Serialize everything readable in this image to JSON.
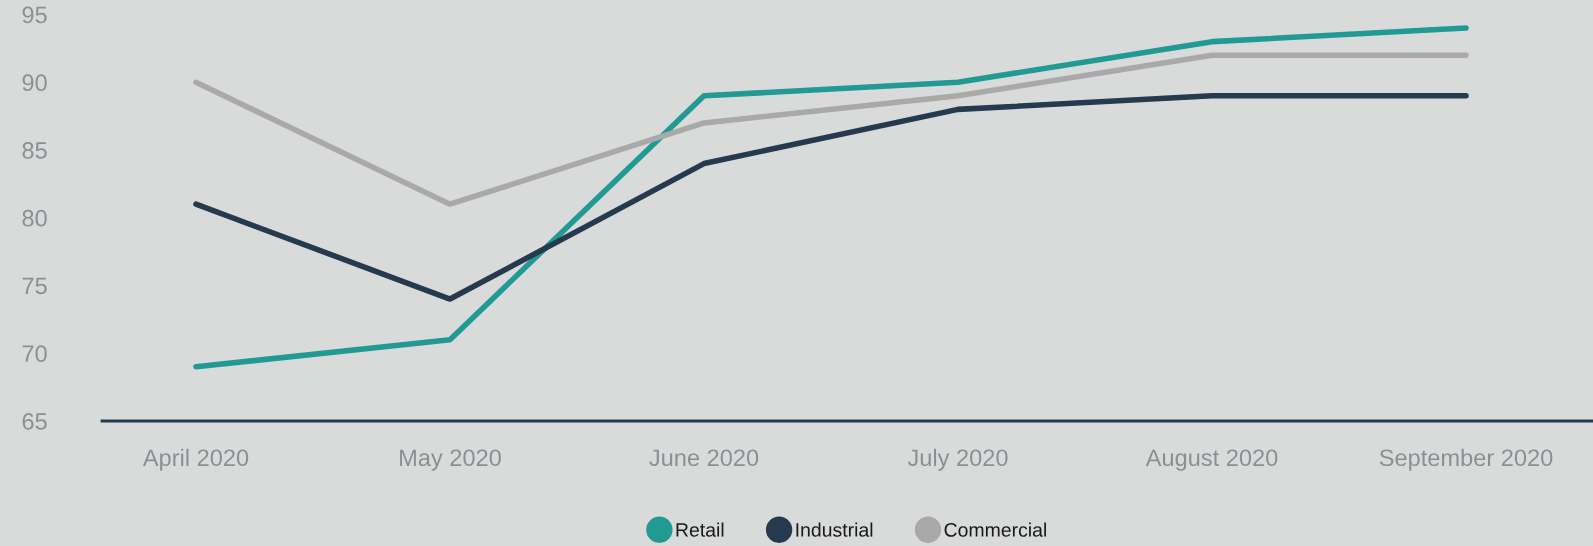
{
  "chart_data": {
    "type": "line",
    "categories": [
      "April 2020",
      "May 2020",
      "June 2020",
      "July 2020",
      "August 2020",
      "September 2020"
    ],
    "series": [
      {
        "name": "Retail",
        "color": "#229a94",
        "values": [
          69,
          71,
          89,
          90,
          93,
          94
        ]
      },
      {
        "name": "Industrial",
        "color": "#253a4f",
        "values": [
          81,
          74,
          84,
          88,
          89,
          89
        ]
      },
      {
        "name": "Commercial",
        "color": "#a9a9a9",
        "values": [
          90,
          81,
          87,
          89,
          92,
          92
        ]
      }
    ],
    "ylim": [
      65,
      96
    ],
    "yticks": [
      65,
      70,
      75,
      80,
      85,
      90,
      95
    ],
    "grid": false,
    "legend": "bottom",
    "marker": "none",
    "line_style": "solid"
  }
}
